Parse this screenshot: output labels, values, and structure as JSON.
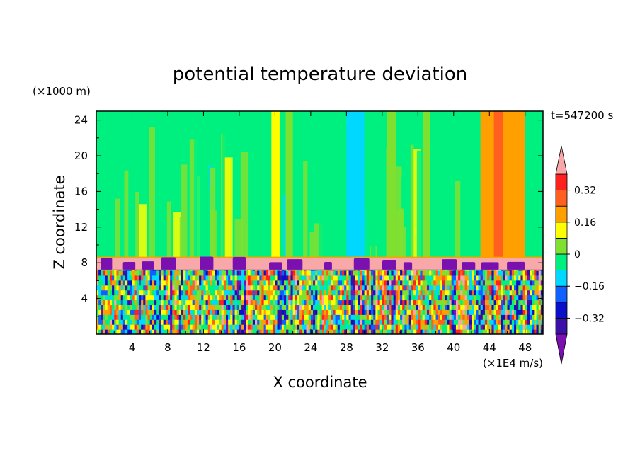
{
  "chart_data": {
    "type": "heatmap",
    "title": "potential temperature deviation",
    "xlabel": "X coordinate",
    "ylabel": "Z coordinate",
    "x_unit": "(×1E4 m/s)",
    "y_unit": "(×1000 m)",
    "time_label": "t=547200 s",
    "xlim": [
      0,
      50
    ],
    "ylim": [
      0,
      25
    ],
    "x_ticks": [
      4,
      8,
      12,
      16,
      20,
      24,
      28,
      32,
      36,
      40,
      44,
      48
    ],
    "y_ticks": [
      4,
      8,
      12,
      16,
      20,
      24
    ],
    "colorbar": {
      "levels": [
        -0.4,
        -0.32,
        -0.24,
        -0.16,
        -0.08,
        0,
        0.08,
        0.16,
        0.24,
        0.32,
        0.4
      ],
      "tick_values": [
        -0.32,
        -0.16,
        0,
        0.16,
        0.32
      ],
      "tick_labels": [
        "−0.32",
        "−0.16",
        "0",
        "0.16",
        "0.32"
      ],
      "colors": [
        "#7a10b0",
        "#3a10a8",
        "#0a10c8",
        "#1060ff",
        "#00d8ff",
        "#00f080",
        "#80e030",
        "#ffff00",
        "#ffa000",
        "#ff6020",
        "#ff2020",
        "#f8a8a8"
      ],
      "extend": "both"
    },
    "layers": {
      "upper_background_value": -0.04,
      "upper_bands": [
        {
          "x": [
            19.6,
            20.6
          ],
          "value": 0.12
        },
        {
          "x": [
            21.2,
            22.0
          ],
          "value": 0.05
        },
        {
          "x": [
            28.0,
            30.0
          ],
          "value": -0.12
        },
        {
          "x": [
            32.5,
            33.6
          ],
          "value": 0.06
        },
        {
          "x": [
            36.6,
            37.4
          ],
          "value": 0.05
        },
        {
          "x": [
            43.0,
            48.0
          ],
          "value": 0.2
        },
        {
          "x": [
            44.5,
            45.5
          ],
          "value": 0.28
        }
      ],
      "inversion_layer": {
        "z": [
          7.2,
          8.6
        ],
        "value": 0.45
      },
      "turbulent_layer": {
        "z": [
          0,
          7.2
        ],
        "value_range": [
          -0.45,
          0.45
        ]
      }
    }
  }
}
